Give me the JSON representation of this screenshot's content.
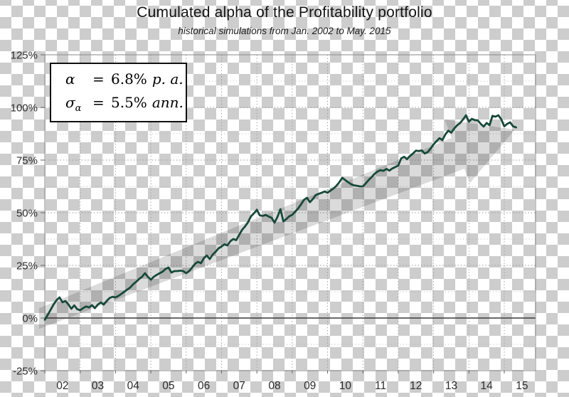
{
  "chart_data": {
    "type": "line",
    "title": "Cumulated alpha of the Profitability portfolio",
    "subtitle": "historical simulations from Jan. 2002 to May. 2015",
    "ylim": [
      -25,
      125
    ],
    "y_label_values": [
      125,
      100,
      75,
      50,
      25,
      0,
      -25
    ],
    "y_tick_labels": [
      "125%",
      "100%",
      "75%",
      "50%",
      "25%",
      "0%",
      "-25%"
    ],
    "y_major_grid": [
      100,
      75,
      50,
      25,
      -25
    ],
    "y_minor_grid": [
      112.5,
      87.5,
      62.5,
      37.5,
      12.5,
      -12.5
    ],
    "x_start_year": 2002,
    "x_end": "2015-05",
    "x_tick_labels": [
      "02",
      "03",
      "04",
      "05",
      "06",
      "07",
      "08",
      "09",
      "10",
      "11",
      "12",
      "13",
      "14",
      "15"
    ],
    "points_per": "month",
    "grid": true,
    "legend": false,
    "series": [
      {
        "name": "Cumulated alpha",
        "values": [
          -0.8,
          1.5,
          4.0,
          6.5,
          8.5,
          9.8,
          7.5,
          8.1,
          6.5,
          4.4,
          6.0,
          4.2,
          3.7,
          4.7,
          5.5,
          5.0,
          6.1,
          4.7,
          6.4,
          7.4,
          6.4,
          8.1,
          9.5,
          10.1,
          9.8,
          10.5,
          11.5,
          12.5,
          13.5,
          14.5,
          16.0,
          17.2,
          18.5,
          19.6,
          21.3,
          19.6,
          18.2,
          19.6,
          20.5,
          21.3,
          22.0,
          23.3,
          24.0,
          21.6,
          22.3,
          22.3,
          22.5,
          22.3,
          21.3,
          22.3,
          24.0,
          25.7,
          26.7,
          26.0,
          28.4,
          29.7,
          28.0,
          30.1,
          31.5,
          33.1,
          34.0,
          35.0,
          34.5,
          36.5,
          37.5,
          37.0,
          39.5,
          41.9,
          43.5,
          45.5,
          48.3,
          49.7,
          51.4,
          48.7,
          48.5,
          49.0,
          48.2,
          47.6,
          45.3,
          48.0,
          51.7,
          45.9,
          47.0,
          48.3,
          49.0,
          50.5,
          52.0,
          54.0,
          56.1,
          57.1,
          55.0,
          56.5,
          58.4,
          59.0,
          59.5,
          60.1,
          59.5,
          60.5,
          61.5,
          62.8,
          64.5,
          66.6,
          65.5,
          64.5,
          63.5,
          63.0,
          62.8,
          62.5,
          62.5,
          64.0,
          65.6,
          67.0,
          68.5,
          69.6,
          70.2,
          69.9,
          70.8,
          70.0,
          71.0,
          71.7,
          72.4,
          75.8,
          76.6,
          75.4,
          77.0,
          78.1,
          79.5,
          79.3,
          79.6,
          78.1,
          78.8,
          80.5,
          82.5,
          84.0,
          85.4,
          84.5,
          87.2,
          89.0,
          88.0,
          90.0,
          91.5,
          92.6,
          94.3,
          96.3,
          93.2,
          94.6,
          94.0,
          93.9,
          92.2,
          90.9,
          92.6,
          91.6,
          96.0,
          95.6,
          96.3,
          94.3,
          91.0,
          92.2,
          92.9,
          91.0,
          90.5
        ]
      }
    ],
    "trend_arrow_points": [
      [
        2001.84,
        4.7
      ],
      [
        2013.51,
        85.5
      ],
      [
        2013.31,
        94.3
      ],
      [
        2015.3,
        89.5
      ],
      [
        2014.03,
        64.2
      ],
      [
        2013.87,
        70.9
      ],
      [
        2001.84,
        -5.1
      ]
    ]
  },
  "annotation": {
    "alpha_symbol": "α",
    "alpha_eq": "=",
    "alpha_value": "6.8%",
    "alpha_unit": "p. a.",
    "sigma_symbol": "σ",
    "sigma_subscript": "α",
    "sigma_eq": "=",
    "sigma_value": "5.5%",
    "sigma_unit": "ann."
  },
  "colors": {
    "line": "#17493a",
    "trend_arrow": "#000000",
    "trend_arrow_opacity": 0.14,
    "checker": "#cdcdcd",
    "zero_line": "#3a3a3a",
    "grid_major": "#9a9a9a",
    "grid_minor": "#b7b7b7",
    "frame": "#8a8a8a",
    "tick_text": "#2b2b2b"
  }
}
